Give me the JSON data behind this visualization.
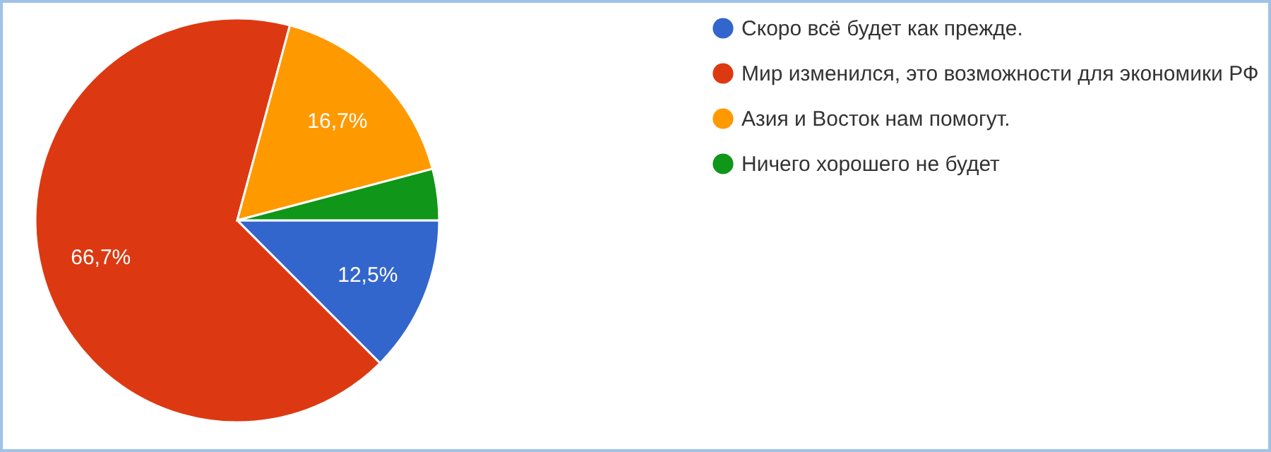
{
  "chart_data": {
    "type": "pie",
    "categories": [
      "Скоро всё будет как прежде.",
      "Мир изменился, это возможности для экономики РФ",
      "Азия и Восток нам помогут.",
      "Ничего хорошего не будет"
    ],
    "values": [
      12.5,
      66.7,
      16.7,
      4.1
    ],
    "colors": [
      "#3366cc",
      "#dc3912",
      "#ff9900",
      "#109618"
    ],
    "value_labels": [
      "12,5%",
      "66,7%",
      "16,7%",
      null
    ],
    "legend": "right"
  }
}
